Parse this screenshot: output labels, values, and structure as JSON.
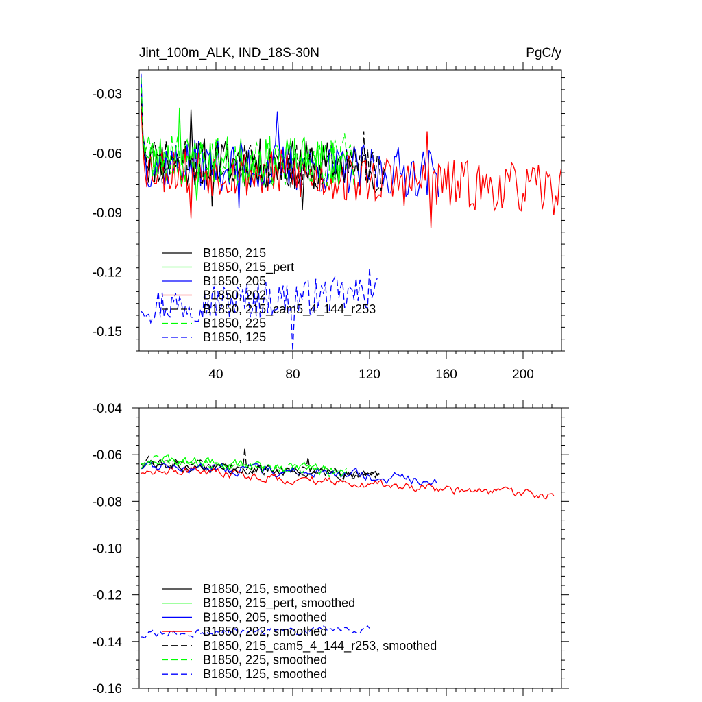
{
  "chart_data": [
    {
      "id": "top",
      "type": "line",
      "title_left": "Jint_100m_ALK, IND_18S-30N",
      "title_right": "PgC/y",
      "xlim": [
        0,
        220
      ],
      "ylim": [
        -0.16,
        -0.018
      ],
      "x_ticks": [
        {
          "value": 40,
          "label": "40"
        },
        {
          "value": 80,
          "label": "80"
        },
        {
          "value": 120,
          "label": "120"
        },
        {
          "value": 160,
          "label": "160"
        },
        {
          "value": 200,
          "label": "200"
        }
      ],
      "y_ticks": [
        {
          "value": -0.03,
          "label": "-0.03"
        },
        {
          "value": -0.06,
          "label": "-0.06"
        },
        {
          "value": -0.09,
          "label": "-0.09"
        },
        {
          "value": -0.12,
          "label": "-0.12"
        },
        {
          "value": -0.15,
          "label": "-0.15"
        }
      ],
      "series": [
        {
          "name": "B1850, 215",
          "color": "#000000",
          "dash": "solid",
          "length": 125,
          "mean": -0.064,
          "trend": -0.003,
          "noise": 0.008,
          "seed": 11,
          "start": -0.03,
          "spikes": [
            [
              27,
              -0.038
            ],
            [
              38,
              -0.087
            ],
            [
              85,
              -0.089
            ]
          ]
        },
        {
          "name": "B1850, 215_pert",
          "color": "#00ff00",
          "dash": "solid",
          "length": 108,
          "mean": -0.063,
          "trend": -0.002,
          "noise": 0.008,
          "seed": 23,
          "start": -0.025,
          "spikes": [
            [
              21,
              -0.037
            ],
            [
              30,
              -0.084
            ]
          ]
        },
        {
          "name": "B1850, 205",
          "color": "#0000ff",
          "dash": "solid",
          "length": 156,
          "mean": -0.065,
          "trend": -0.005,
          "noise": 0.008,
          "seed": 37,
          "start": -0.02,
          "spikes": [
            [
              72,
              -0.039
            ],
            [
              52,
              -0.088
            ]
          ]
        },
        {
          "name": "B1850, 202",
          "color": "#ff0000",
          "dash": "solid",
          "length": 220,
          "mean": -0.067,
          "trend": -0.012,
          "noise": 0.008,
          "seed": 53,
          "start": -0.035,
          "spikes": [
            [
              27,
              -0.093
            ],
            [
              152,
              -0.098
            ],
            [
              150,
              -0.049
            ]
          ]
        },
        {
          "name": "B1850, 215_cam5_4_144_r253",
          "color": "#000000",
          "dash": "dashed",
          "length": 128,
          "mean": -0.064,
          "trend": -0.004,
          "noise": 0.007,
          "seed": 71,
          "start": -0.028,
          "spikes": [
            [
              117,
              -0.049
            ]
          ]
        },
        {
          "name": "B1850, 225",
          "color": "#00ff00",
          "dash": "dashed",
          "length": 112,
          "mean": -0.063,
          "trend": -0.003,
          "noise": 0.008,
          "seed": 89,
          "start": -0.022,
          "spikes": [
            [
              107,
              -0.05
            ]
          ]
        },
        {
          "name": "B1850, 125",
          "color": "#0000ff",
          "dash": "dashed",
          "length": 124,
          "mean": -0.137,
          "trend": 0.006,
          "noise": 0.006,
          "seed": 97,
          "start": -0.14,
          "spikes": [
            [
              80,
              -0.16
            ],
            [
              120,
              -0.118
            ]
          ]
        }
      ],
      "legend": [
        "B1850, 215",
        "B1850, 215_pert",
        "B1850, 205",
        "B1850, 202",
        "B1850, 215_cam5_4_144_r253",
        "B1850, 225",
        "B1850, 125"
      ]
    },
    {
      "id": "bottom",
      "type": "line",
      "xlim": [
        0,
        220
      ],
      "ylim": [
        -0.16,
        -0.04
      ],
      "x_ticks": [
        {
          "value": 40,
          "label": ""
        },
        {
          "value": 80,
          "label": ""
        },
        {
          "value": 120,
          "label": ""
        },
        {
          "value": 160,
          "label": ""
        },
        {
          "value": 200,
          "label": ""
        }
      ],
      "y_ticks": [
        {
          "value": -0.04,
          "label": "-0.04"
        },
        {
          "value": -0.06,
          "label": "-0.06"
        },
        {
          "value": -0.08,
          "label": "-0.08"
        },
        {
          "value": -0.1,
          "label": "-0.10"
        },
        {
          "value": -0.12,
          "label": "-0.12"
        },
        {
          "value": -0.14,
          "label": "-0.14"
        },
        {
          "value": -0.16,
          "label": "-0.16"
        }
      ],
      "series": [
        {
          "name": "B1850, 215, smoothed",
          "color": "#000000",
          "dash": "solid",
          "length": 125,
          "mean": -0.064,
          "trend": -0.005,
          "noise": 0.0025,
          "seed": 111,
          "start": -0.064,
          "spikes": []
        },
        {
          "name": "B1850, 215_pert, smoothed",
          "color": "#00ff00",
          "dash": "solid",
          "length": 108,
          "mean": -0.062,
          "trend": -0.005,
          "noise": 0.0025,
          "seed": 123,
          "start": -0.064,
          "spikes": []
        },
        {
          "name": "B1850, 205, smoothed",
          "color": "#0000ff",
          "dash": "solid",
          "length": 155,
          "mean": -0.064,
          "trend": -0.007,
          "noise": 0.0025,
          "seed": 137,
          "start": -0.066,
          "spikes": []
        },
        {
          "name": "B1850, 202, smoothed",
          "color": "#ff0000",
          "dash": "solid",
          "length": 216,
          "mean": -0.066,
          "trend": -0.012,
          "noise": 0.0022,
          "seed": 153,
          "start": -0.068,
          "spikes": [
            [
              212,
              -0.079
            ]
          ]
        },
        {
          "name": "B1850, 215_cam5_4_144_r253, smoothed",
          "color": "#000000",
          "dash": "dashed",
          "length": 125,
          "mean": -0.063,
          "trend": -0.006,
          "noise": 0.0025,
          "seed": 171,
          "start": -0.066,
          "spikes": [
            [
              55,
              -0.057
            ],
            [
              88,
              -0.061
            ]
          ]
        },
        {
          "name": "B1850, 225, smoothed",
          "color": "#00ff00",
          "dash": "dashed",
          "length": 108,
          "mean": -0.062,
          "trend": -0.006,
          "noise": 0.0025,
          "seed": 189,
          "start": -0.066,
          "spikes": []
        },
        {
          "name": "B1850, 125, smoothed",
          "color": "#0000ff",
          "dash": "dashed",
          "length": 120,
          "mean": -0.137,
          "trend": 0.003,
          "noise": 0.0018,
          "seed": 197,
          "start": -0.138,
          "spikes": []
        }
      ],
      "legend": [
        "B1850, 215, smoothed",
        "B1850, 215_pert, smoothed",
        "B1850, 205, smoothed",
        "B1850, 202, smoothed",
        "B1850, 215_cam5_4_144_r253, smoothed",
        "B1850, 225, smoothed",
        "B1850, 125, smoothed"
      ]
    }
  ]
}
